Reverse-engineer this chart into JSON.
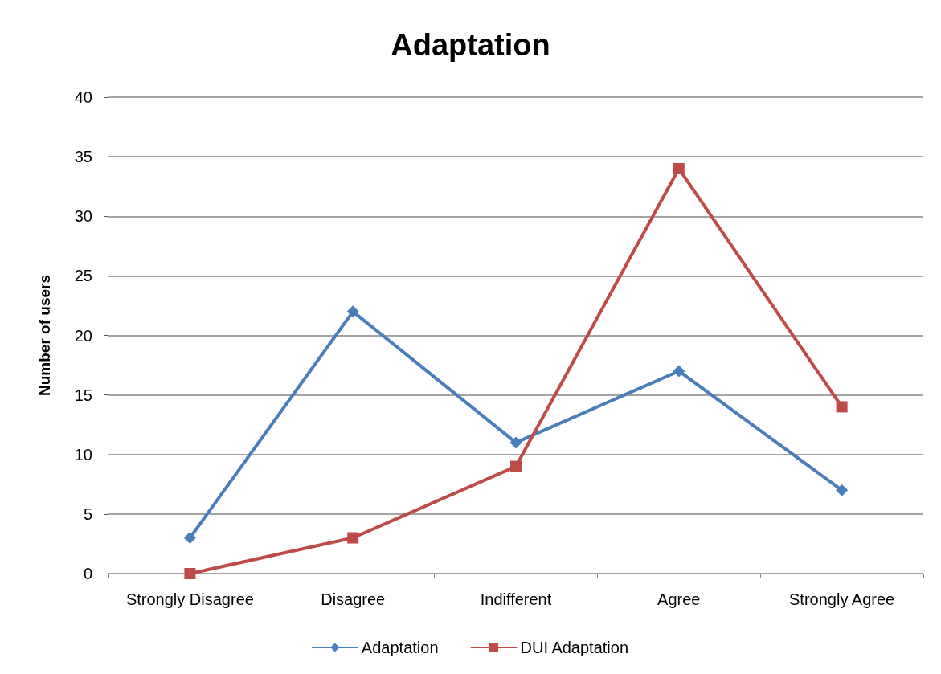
{
  "chart_data": {
    "type": "line",
    "title": "Adaptation",
    "ylabel": "Number of users",
    "categories": [
      "Strongly Disagree",
      "Disagree",
      "Indifferent",
      "Agree",
      "Strongly Agree"
    ],
    "series": [
      {
        "name": "Adaptation",
        "color": "#4a7ebb",
        "marker": "diamond",
        "values": [
          3,
          22,
          11,
          17,
          7
        ]
      },
      {
        "name": "DUI Adaptation",
        "color": "#be4b48",
        "marker": "square",
        "values": [
          0,
          3,
          9,
          34,
          14
        ]
      }
    ],
    "ylim": [
      0,
      40
    ],
    "yticks": [
      0,
      5,
      10,
      15,
      20,
      25,
      30,
      35,
      40
    ],
    "grid": "y",
    "legend": "bottom",
    "line_style": "solid"
  }
}
